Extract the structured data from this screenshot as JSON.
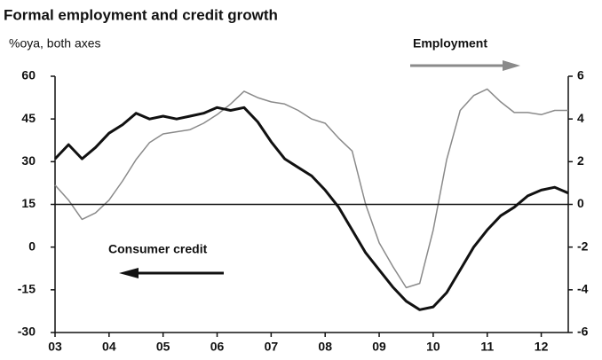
{
  "chart_data": {
    "type": "line",
    "title": "Formal employment and credit growth",
    "subtitle": "%oya, both axes",
    "x": [
      2003.0,
      2003.25,
      2003.5,
      2003.75,
      2004.0,
      2004.25,
      2004.5,
      2004.75,
      2005.0,
      2005.25,
      2005.5,
      2005.75,
      2006.0,
      2006.25,
      2006.5,
      2006.75,
      2007.0,
      2007.25,
      2007.5,
      2007.75,
      2008.0,
      2008.25,
      2008.5,
      2008.75,
      2009.0,
      2009.25,
      2009.5,
      2009.75,
      2010.0,
      2010.25,
      2010.5,
      2010.75,
      2011.0,
      2011.25,
      2011.5,
      2011.75,
      2012.0,
      2012.25,
      2012.5
    ],
    "series": [
      {
        "name": "Consumer credit",
        "color": "#111111",
        "axis": "y",
        "values": [
          31,
          36,
          31,
          35,
          40,
          43,
          47,
          45,
          46,
          45,
          46,
          47,
          49,
          48,
          49,
          44,
          37,
          31,
          28,
          25,
          20,
          14,
          6,
          -2,
          -8,
          -14,
          -19,
          -22,
          -21,
          -16,
          -8,
          0,
          6,
          11,
          14,
          18,
          20,
          21,
          19
        ]
      },
      {
        "name": "Employment",
        "color": "#8a8a8a",
        "axis": "y2",
        "values": [
          0.9,
          0.2,
          -0.7,
          -0.4,
          0.2,
          1.1,
          2.1,
          2.9,
          3.3,
          3.4,
          3.5,
          3.8,
          4.2,
          4.7,
          5.3,
          5.0,
          4.8,
          4.7,
          4.4,
          4.0,
          3.8,
          3.1,
          2.5,
          0.0,
          -1.8,
          -2.9,
          -3.9,
          -3.7,
          -1.2,
          2.1,
          4.4,
          5.1,
          5.4,
          4.8,
          4.3,
          4.3,
          4.2,
          4.4,
          4.4
        ]
      }
    ],
    "xlim": [
      2003,
      2012.5
    ],
    "xticks": [
      {
        "value": 2003,
        "label": "03"
      },
      {
        "value": 2004,
        "label": "04"
      },
      {
        "value": 2005,
        "label": "05"
      },
      {
        "value": 2006,
        "label": "06"
      },
      {
        "value": 2007,
        "label": "07"
      },
      {
        "value": 2008,
        "label": "08"
      },
      {
        "value": 2009,
        "label": "09"
      },
      {
        "value": 2010,
        "label": "10"
      },
      {
        "value": 2011,
        "label": "11"
      },
      {
        "value": 2012,
        "label": "12"
      }
    ],
    "ylim": [
      -30,
      60
    ],
    "yticks": [
      -30,
      -15,
      0,
      15,
      30,
      45,
      60
    ],
    "y2lim": [
      -6,
      6
    ],
    "y2ticks": [
      -6,
      -4,
      -2,
      0,
      2,
      4,
      6
    ],
    "zero_line": true
  }
}
